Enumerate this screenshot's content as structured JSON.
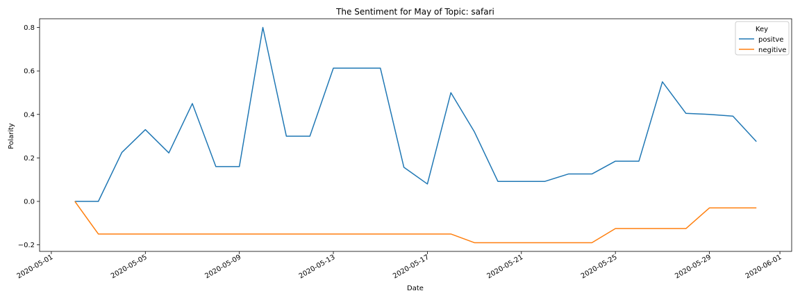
{
  "chart_data": {
    "type": "line",
    "title": "The Sentiment for May of Topic: safari",
    "xlabel": "Date",
    "ylabel": "Polarity",
    "xlim": [
      "2020-05-01",
      "2020-06-01"
    ],
    "ylim": [
      -0.23,
      0.84
    ],
    "x_ticks": [
      "2020-05-01",
      "2020-05-05",
      "2020-05-09",
      "2020-05-13",
      "2020-05-17",
      "2020-05-21",
      "2020-05-25",
      "2020-05-29",
      "2020-06-01"
    ],
    "y_ticks": [
      "−0.2",
      "0.0",
      "0.2",
      "0.4",
      "0.6",
      "0.8"
    ],
    "y_tick_values": [
      -0.2,
      0.0,
      0.2,
      0.4,
      0.6,
      0.8
    ],
    "grid": false,
    "legend": {
      "title": "Key",
      "position": "top-right"
    },
    "x": [
      "2020-05-02",
      "2020-05-03",
      "2020-05-04",
      "2020-05-05",
      "2020-05-06",
      "2020-05-07",
      "2020-05-08",
      "2020-05-09",
      "2020-05-10",
      "2020-05-11",
      "2020-05-12",
      "2020-05-13",
      "2020-05-14",
      "2020-05-15",
      "2020-05-16",
      "2020-05-17",
      "2020-05-18",
      "2020-05-19",
      "2020-05-20",
      "2020-05-21",
      "2020-05-22",
      "2020-05-23",
      "2020-05-24",
      "2020-05-25",
      "2020-05-26",
      "2020-05-27",
      "2020-05-28",
      "2020-05-29",
      "2020-05-30",
      "2020-05-31"
    ],
    "series": [
      {
        "name": "positve",
        "color": "#1f77b4",
        "values": [
          0.0,
          0.0,
          0.225,
          0.33,
          0.223,
          0.45,
          0.16,
          0.16,
          0.8,
          0.3,
          0.3,
          0.613,
          0.613,
          0.613,
          0.157,
          0.08,
          0.5,
          0.32,
          0.092,
          0.092,
          0.092,
          0.126,
          0.126,
          0.185,
          0.185,
          0.55,
          0.405,
          0.4,
          0.392,
          0.275
        ]
      },
      {
        "name": "negitive",
        "color": "#ff7f0e",
        "values": [
          0.0,
          -0.15,
          -0.15,
          -0.15,
          -0.15,
          -0.15,
          -0.15,
          -0.15,
          -0.15,
          -0.15,
          -0.15,
          -0.15,
          -0.15,
          -0.15,
          -0.15,
          -0.15,
          -0.15,
          -0.19,
          -0.19,
          -0.19,
          -0.19,
          -0.19,
          -0.19,
          -0.125,
          -0.125,
          -0.125,
          -0.125,
          -0.03,
          -0.03,
          -0.03
        ]
      }
    ]
  }
}
